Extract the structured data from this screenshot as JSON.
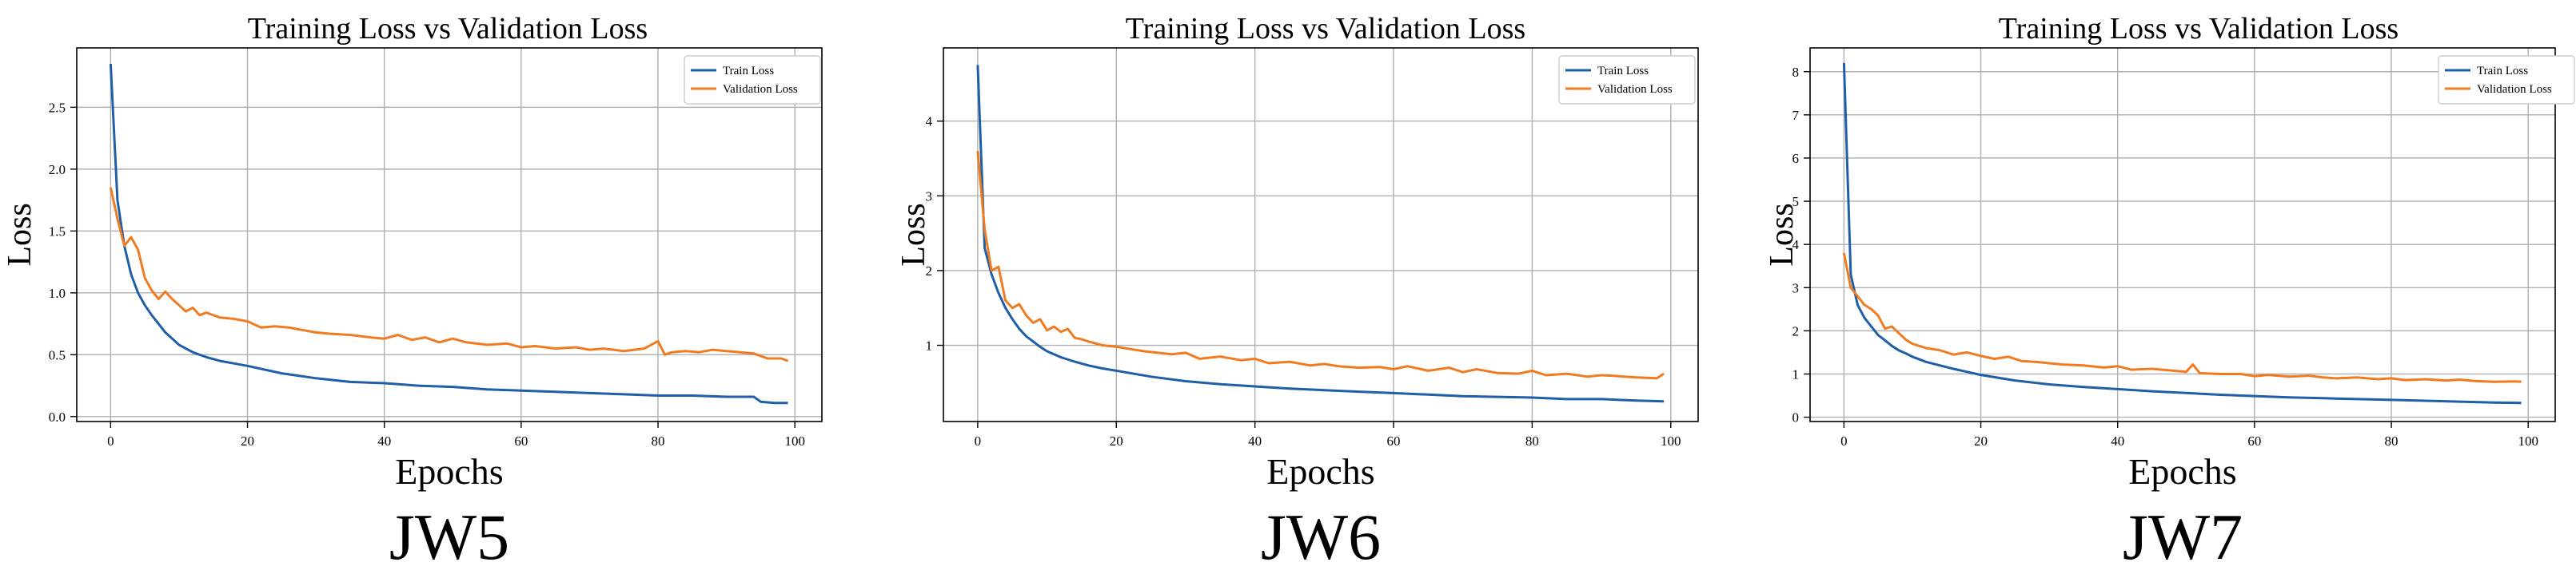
{
  "chart_data": [
    {
      "type": "line",
      "title": "Training Loss vs Validation Loss",
      "xlabel": "Epochs",
      "ylabel": "Loss",
      "caption": "JW5",
      "xlim": [
        -4.95,
        103.95
      ],
      "ylim": [
        -0.04,
        2.98
      ],
      "xticks": [
        0,
        20,
        40,
        60,
        80,
        100
      ],
      "yticks": [
        0.0,
        0.5,
        1.0,
        1.5,
        2.0,
        2.5
      ],
      "ytick_labels": [
        "0.0",
        "0.5",
        "1.0",
        "1.5",
        "2.0",
        "2.5"
      ],
      "legend": "upper right",
      "series": [
        {
          "name": "Train Loss",
          "color": "#1f5fa8",
          "x": [
            0,
            1,
            2,
            3,
            4,
            5,
            6,
            7,
            8,
            9,
            10,
            12,
            14,
            16,
            18,
            20,
            25,
            30,
            35,
            40,
            45,
            50,
            55,
            60,
            65,
            70,
            75,
            80,
            85,
            90,
            94,
            95,
            97,
            99
          ],
          "y": [
            2.85,
            1.75,
            1.38,
            1.15,
            1.0,
            0.9,
            0.82,
            0.75,
            0.68,
            0.63,
            0.58,
            0.52,
            0.48,
            0.45,
            0.43,
            0.41,
            0.35,
            0.31,
            0.28,
            0.27,
            0.25,
            0.24,
            0.22,
            0.21,
            0.2,
            0.19,
            0.18,
            0.17,
            0.17,
            0.16,
            0.16,
            0.12,
            0.11,
            0.11
          ]
        },
        {
          "name": "Validation Loss",
          "color": "#f07b20",
          "x": [
            0,
            1,
            2,
            3,
            4,
            5,
            6,
            7,
            8,
            9,
            10,
            11,
            12,
            13,
            14,
            16,
            18,
            20,
            22,
            24,
            26,
            28,
            30,
            32,
            35,
            38,
            40,
            42,
            44,
            46,
            48,
            50,
            52,
            55,
            58,
            60,
            62,
            65,
            68,
            70,
            72,
            75,
            78,
            80,
            81,
            82,
            84,
            86,
            88,
            90,
            92,
            94,
            96,
            98,
            99
          ],
          "y": [
            1.85,
            1.6,
            1.38,
            1.45,
            1.35,
            1.12,
            1.02,
            0.95,
            1.01,
            0.95,
            0.9,
            0.85,
            0.88,
            0.82,
            0.84,
            0.8,
            0.79,
            0.77,
            0.72,
            0.73,
            0.72,
            0.7,
            0.68,
            0.67,
            0.66,
            0.64,
            0.63,
            0.66,
            0.62,
            0.64,
            0.6,
            0.63,
            0.6,
            0.58,
            0.59,
            0.56,
            0.57,
            0.55,
            0.56,
            0.54,
            0.55,
            0.53,
            0.55,
            0.61,
            0.5,
            0.52,
            0.53,
            0.52,
            0.54,
            0.53,
            0.52,
            0.51,
            0.47,
            0.47,
            0.45
          ]
        }
      ]
    },
    {
      "type": "line",
      "title": "Training Loss vs Validation Loss",
      "xlabel": "Epochs",
      "ylabel": "Loss",
      "caption": "JW6",
      "xlim": [
        -4.95,
        103.95
      ],
      "ylim": [
        -0.02,
        4.98
      ],
      "xticks": [
        0,
        20,
        40,
        60,
        80,
        100
      ],
      "yticks": [
        1,
        2,
        3,
        4
      ],
      "ytick_labels": [
        "1",
        "2",
        "3",
        "4"
      ],
      "legend": "upper right",
      "series": [
        {
          "name": "Train Loss",
          "color": "#1f5fa8",
          "x": [
            0,
            1,
            2,
            3,
            4,
            5,
            6,
            7,
            8,
            9,
            10,
            12,
            14,
            16,
            18,
            20,
            25,
            30,
            35,
            40,
            45,
            50,
            55,
            60,
            65,
            70,
            75,
            80,
            85,
            90,
            95,
            99
          ],
          "y": [
            4.75,
            2.3,
            1.95,
            1.7,
            1.5,
            1.35,
            1.22,
            1.12,
            1.05,
            0.98,
            0.92,
            0.84,
            0.78,
            0.73,
            0.69,
            0.66,
            0.58,
            0.52,
            0.48,
            0.45,
            0.42,
            0.4,
            0.38,
            0.36,
            0.34,
            0.32,
            0.31,
            0.3,
            0.28,
            0.28,
            0.26,
            0.25
          ]
        },
        {
          "name": "Validation Loss",
          "color": "#f07b20",
          "x": [
            0,
            1,
            2,
            3,
            4,
            5,
            6,
            7,
            8,
            9,
            10,
            11,
            12,
            13,
            14,
            15,
            16,
            18,
            20,
            22,
            24,
            26,
            28,
            30,
            32,
            35,
            38,
            40,
            42,
            45,
            48,
            50,
            52,
            55,
            58,
            60,
            62,
            65,
            68,
            70,
            72,
            75,
            78,
            80,
            82,
            85,
            88,
            90,
            92,
            95,
            98,
            99
          ],
          "y": [
            3.6,
            2.55,
            2.0,
            2.05,
            1.6,
            1.5,
            1.55,
            1.4,
            1.3,
            1.35,
            1.2,
            1.25,
            1.18,
            1.22,
            1.1,
            1.08,
            1.05,
            1.0,
            0.98,
            0.95,
            0.92,
            0.9,
            0.88,
            0.9,
            0.82,
            0.85,
            0.8,
            0.82,
            0.76,
            0.78,
            0.73,
            0.75,
            0.72,
            0.7,
            0.71,
            0.68,
            0.72,
            0.66,
            0.7,
            0.64,
            0.68,
            0.63,
            0.62,
            0.66,
            0.6,
            0.62,
            0.58,
            0.6,
            0.59,
            0.57,
            0.56,
            0.62
          ]
        }
      ]
    },
    {
      "type": "line",
      "title": "Training Loss vs Validation Loss",
      "xlabel": "Epochs",
      "ylabel": "Loss",
      "caption": "JW7",
      "xlim": [
        -4.95,
        103.95
      ],
      "ylim": [
        -0.1,
        8.55
      ],
      "xticks": [
        0,
        20,
        40,
        60,
        80,
        100
      ],
      "yticks": [
        0,
        1,
        2,
        3,
        4,
        5,
        6,
        7,
        8
      ],
      "ytick_labels": [
        "0",
        "1",
        "2",
        "3",
        "4",
        "5",
        "6",
        "7",
        "8"
      ],
      "legend": "upper right",
      "series": [
        {
          "name": "Train Loss",
          "color": "#1f5fa8",
          "x": [
            0,
            1,
            2,
            3,
            4,
            5,
            6,
            7,
            8,
            9,
            10,
            12,
            14,
            16,
            18,
            20,
            25,
            30,
            35,
            40,
            45,
            50,
            55,
            60,
            65,
            70,
            75,
            80,
            85,
            90,
            95,
            99
          ],
          "y": [
            8.2,
            3.3,
            2.6,
            2.3,
            2.1,
            1.9,
            1.78,
            1.65,
            1.55,
            1.48,
            1.4,
            1.28,
            1.2,
            1.12,
            1.05,
            0.98,
            0.85,
            0.76,
            0.7,
            0.65,
            0.6,
            0.56,
            0.52,
            0.49,
            0.46,
            0.44,
            0.42,
            0.4,
            0.38,
            0.36,
            0.34,
            0.33
          ]
        },
        {
          "name": "Validation Loss",
          "color": "#f07b20",
          "x": [
            0,
            1,
            2,
            3,
            4,
            5,
            6,
            7,
            8,
            9,
            10,
            11,
            12,
            14,
            16,
            18,
            20,
            22,
            24,
            26,
            28,
            30,
            32,
            35,
            38,
            40,
            42,
            45,
            48,
            50,
            51,
            52,
            55,
            58,
            60,
            62,
            65,
            68,
            70,
            72,
            75,
            78,
            80,
            82,
            85,
            88,
            90,
            92,
            95,
            98,
            99
          ],
          "y": [
            3.8,
            3.0,
            2.8,
            2.6,
            2.5,
            2.35,
            2.05,
            2.1,
            1.95,
            1.8,
            1.7,
            1.65,
            1.6,
            1.55,
            1.45,
            1.5,
            1.42,
            1.35,
            1.4,
            1.3,
            1.28,
            1.25,
            1.22,
            1.2,
            1.15,
            1.18,
            1.1,
            1.12,
            1.08,
            1.05,
            1.22,
            1.02,
            1.0,
            1.0,
            0.95,
            0.98,
            0.94,
            0.96,
            0.92,
            0.9,
            0.92,
            0.88,
            0.9,
            0.86,
            0.88,
            0.85,
            0.87,
            0.84,
            0.82,
            0.83,
            0.82
          ]
        }
      ]
    }
  ]
}
